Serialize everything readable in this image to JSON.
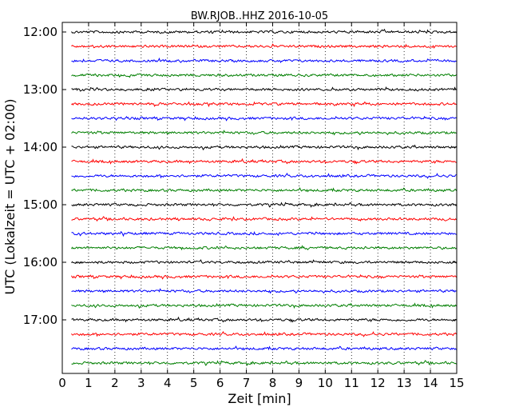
{
  "chart_data": {
    "type": "line",
    "title": "BW.RJOB..HHZ 2016-10-05",
    "xlabel": "Zeit  [min]",
    "ylabel": "UTC (Lokalzeit = UTC + 02:00)",
    "xlim": [
      0,
      15
    ],
    "x_ticks": [
      "0",
      "1",
      "2",
      "3",
      "4",
      "5",
      "6",
      "7",
      "8",
      "9",
      "10",
      "11",
      "12",
      "13",
      "14",
      "15"
    ],
    "y_tick_labels": [
      "12:00",
      "13:00",
      "14:00",
      "15:00",
      "16:00",
      "17:00"
    ],
    "trace_interval_min": 15,
    "grid": "vertical dotted",
    "colors": [
      "#000000",
      "#ff0000",
      "#0000ff",
      "#007f00"
    ],
    "series": [
      {
        "start": "12:00"
      },
      {
        "start": "12:15"
      },
      {
        "start": "12:30"
      },
      {
        "start": "12:45"
      },
      {
        "start": "13:00"
      },
      {
        "start": "13:15"
      },
      {
        "start": "13:30"
      },
      {
        "start": "13:45"
      },
      {
        "start": "14:00"
      },
      {
        "start": "14:15"
      },
      {
        "start": "14:30"
      },
      {
        "start": "14:45"
      },
      {
        "start": "15:00"
      },
      {
        "start": "15:15"
      },
      {
        "start": "15:30"
      },
      {
        "start": "15:45"
      },
      {
        "start": "16:00"
      },
      {
        "start": "16:15"
      },
      {
        "start": "16:30"
      },
      {
        "start": "16:45"
      },
      {
        "start": "17:00"
      },
      {
        "start": "17:15"
      },
      {
        "start": "17:30"
      },
      {
        "start": "17:45"
      }
    ]
  }
}
